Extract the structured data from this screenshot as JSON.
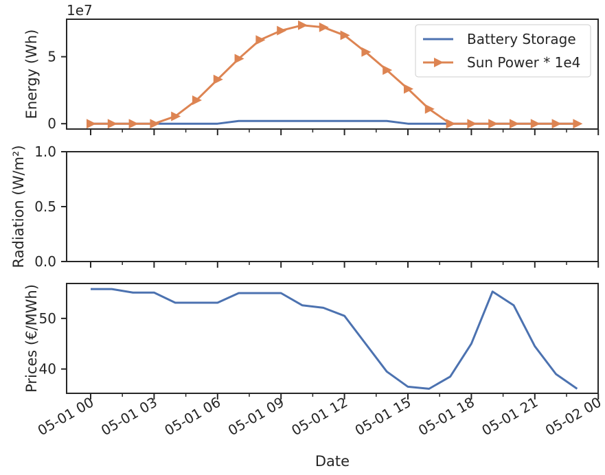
{
  "chart_data": [
    {
      "type": "line",
      "ylabel": "Energy (Wh)",
      "offset_label": "1e7",
      "ylim": [
        -0.4,
        7.8
      ],
      "yticks": [
        0,
        5
      ],
      "legend_position": "top-right",
      "series": [
        {
          "name": "Battery Storage",
          "color": "#4c72b0",
          "marker": "none",
          "x": [
            0,
            1,
            2,
            3,
            4,
            5,
            6,
            7,
            8,
            9,
            10,
            11,
            12,
            13,
            14,
            15,
            16,
            17,
            18,
            19,
            20,
            21,
            22,
            23
          ],
          "values": [
            0,
            0,
            0,
            0,
            0,
            0,
            0,
            0.2,
            0.2,
            0.2,
            0.2,
            0.2,
            0.2,
            0.2,
            0.2,
            0,
            0,
            0,
            0,
            0,
            0,
            0,
            0,
            0
          ]
        },
        {
          "name": "Sun Power * 1e4",
          "color": "#dd8452",
          "marker": "triangle-right",
          "x": [
            0,
            1,
            2,
            3,
            4,
            5,
            6,
            7,
            8,
            9,
            10,
            11,
            12,
            13,
            14,
            15,
            16,
            17,
            18,
            19,
            20,
            21,
            22,
            23
          ],
          "values": [
            0,
            0,
            0,
            0,
            0.55,
            1.75,
            3.3,
            4.85,
            6.25,
            6.95,
            7.35,
            7.2,
            6.6,
            5.35,
            4.0,
            2.6,
            1.1,
            0,
            0,
            0,
            0,
            0,
            0,
            0
          ]
        }
      ]
    },
    {
      "type": "line",
      "ylabel": "Radiation (W/m²)",
      "ylim": [
        0.0,
        1.0
      ],
      "yticks": [
        "0.0",
        "0.5",
        "1.0"
      ],
      "series": []
    },
    {
      "type": "line",
      "ylabel": "Prices (€/MWh)",
      "xlabel": "Date",
      "ylim": [
        35.2,
        56.9
      ],
      "yticks": [
        40,
        50
      ],
      "xticks": [
        "05-01 00",
        "05-01 03",
        "05-01 06",
        "05-01 09",
        "05-01 12",
        "05-01 15",
        "05-01 18",
        "05-01 21",
        "05-02 00"
      ],
      "series": [
        {
          "name": "",
          "color": "#4c72b0",
          "x": [
            0,
            1,
            2,
            3,
            4,
            5,
            6,
            7,
            8,
            9,
            10,
            11,
            12,
            13,
            14,
            15,
            16,
            17,
            18,
            19,
            20,
            21,
            22,
            23
          ],
          "values": [
            55.8,
            55.8,
            55.1,
            55.1,
            53.1,
            53.1,
            53.1,
            55.0,
            55.0,
            55.0,
            52.6,
            52.1,
            50.5,
            45.0,
            39.5,
            36.5,
            36.1,
            38.5,
            45.0,
            55.3,
            52.6,
            44.5,
            39.0,
            36.1
          ]
        }
      ]
    }
  ]
}
